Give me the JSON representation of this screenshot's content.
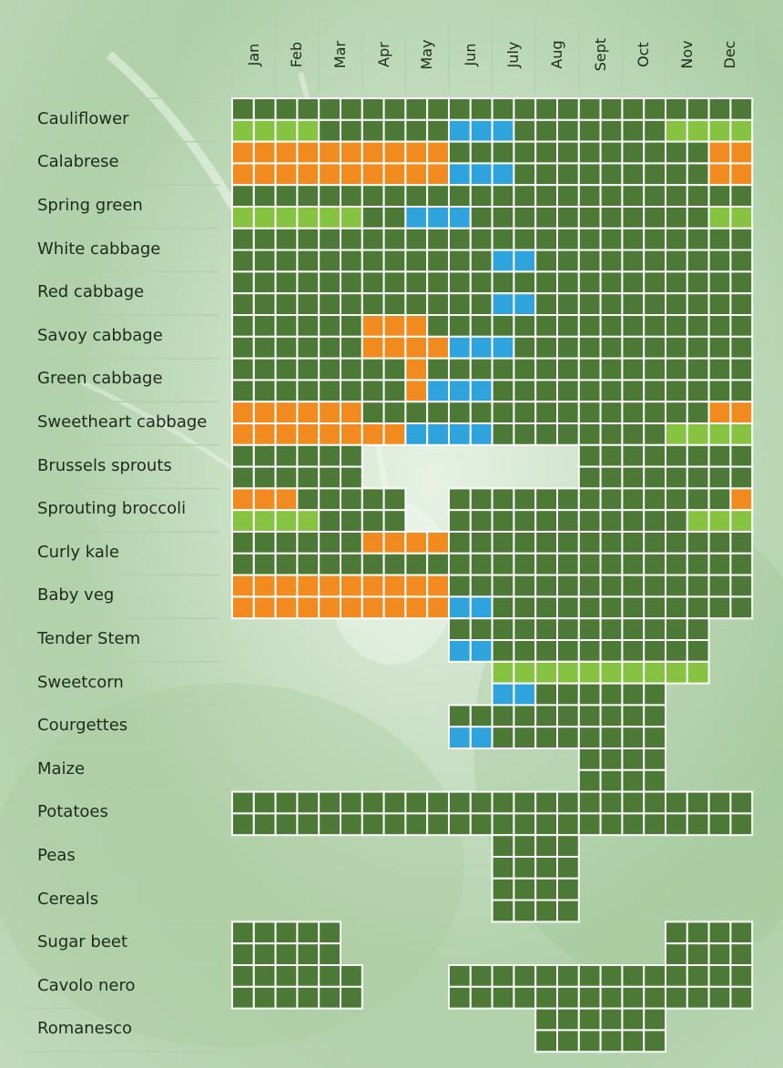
{
  "colors": {
    "dark": "#4c7a36",
    "light": "#86c340",
    "orange": "#f18a1f",
    "blue": "#2ea3dc",
    "grid_line": "#ffffff",
    "separator": "#b6cdb0"
  },
  "chart_data": {
    "type": "heatmap",
    "title": "",
    "months": [
      "Jan",
      "Feb",
      "Mar",
      "Apr",
      "May",
      "Jun",
      "July",
      "Aug",
      "Sept",
      "Oct",
      "Nov",
      "Dec"
    ],
    "cells_per_month": 2,
    "legend": {
      "D": "dark",
      "L": "light",
      "O": "orange",
      "B": "blue",
      ".": "empty"
    },
    "crops": [
      {
        "name": "Cauliflower",
        "sub_rows": [
          "DDDDDDDDDDDDDDDDDDDDDDDD",
          "LLLLDDDDDDBBBDDDDDDDLLLL"
        ]
      },
      {
        "name": "Calabrese",
        "sub_rows": [
          "OOOOOOOOOODDDDDDDDDDDDOO",
          "OOOOOOOOOOBBBDDDDDDDDDOO"
        ]
      },
      {
        "name": "Spring green",
        "sub_rows": [
          "DDDDDDDDDDDDDDDDDDDDDDDD",
          "LLLLLLDDBBBDDDDDDDDDDDLL"
        ]
      },
      {
        "name": "White cabbage",
        "sub_rows": [
          "DDDDDDDDDDDDDDDDDDDDDDDD",
          "DDDDDDDDDDDDBBDDDDDDDDDD"
        ]
      },
      {
        "name": "Red cabbage",
        "sub_rows": [
          "DDDDDDDDDDDDDDDDDDDDDDDD",
          "DDDDDDDDDDDDBBDDDDDDDDDD"
        ]
      },
      {
        "name": "Savoy cabbage",
        "sub_rows": [
          "DDDDDDOOODDDDDDDDDDDDDDD",
          "DDDDDDOOOOBBBDDDDDDDDDDD"
        ]
      },
      {
        "name": "Green cabbage",
        "sub_rows": [
          "DDDDDDDDODDDDDDDDDDDDDDD",
          "DDDDDDDDOBBBDDDDDDDDDDDD"
        ]
      },
      {
        "name": "Sweetheart cabbage",
        "sub_rows": [
          "OOOOOODDDDDDDDDDDDDDDDOO",
          "OOOOOOOOBBBBDDDDDDDDLLLL"
        ]
      },
      {
        "name": "Brussels sprouts",
        "sub_rows": [
          "DDDDDD..........DDDDDDDD",
          "DDDDDD..........DDDDDDDD"
        ]
      },
      {
        "name": "Sprouting broccoli",
        "sub_rows": [
          "OOODDDDD..DDDDDDDDDDDDDO",
          "LLLLDDDD..DDDDDDDDDDDLLL"
        ]
      },
      {
        "name": "Curly kale",
        "sub_rows": [
          "DDDDDDOOOODDDDDDDDDDDDDD",
          "DDDDDDDDDDDDDDDDDDDDDDDD"
        ]
      },
      {
        "name": "Baby veg",
        "sub_rows": [
          "OOOOOOOOOODDDDDDDDDDDDDD",
          "OOOOOOOOOOBBDDDDDDDDDDDD"
        ]
      },
      {
        "name": "Tender Stem",
        "sub_rows": [
          "..........DDDDDDDDDDDD..",
          "..........BBDDDDDDDDDD.."
        ]
      },
      {
        "name": "Sweetcorn",
        "sub_rows": [
          "............LLLLLLLLLL..",
          "............BBDDDDDD...."
        ]
      },
      {
        "name": "Courgettes",
        "sub_rows": [
          "..........DDDDDDDDDD....",
          "..........BBDDDDDDDD...."
        ]
      },
      {
        "name": "Maize",
        "sub_rows": [
          "................DDDD....",
          "................DDDD...."
        ]
      },
      {
        "name": "Potatoes",
        "sub_rows": [
          "DDDDDDDDDDDDDDDDDDDDDDDD",
          "DDDDDDDDDDDDDDDDDDDDDDDD"
        ]
      },
      {
        "name": "Peas",
        "sub_rows": [
          "............DDDD........",
          "............DDDD........"
        ]
      },
      {
        "name": "Cereals",
        "sub_rows": [
          "............DDDD........",
          "............DDDD........"
        ]
      },
      {
        "name": "Sugar beet",
        "sub_rows": [
          "DDDDD...............DDDD",
          "DDDDD...............DDDD"
        ]
      },
      {
        "name": "Cavolo nero",
        "sub_rows": [
          "DDDDDD....DDDDDDDDDDDDDD",
          "DDDDDD....DDDDDDDDDDDDDD"
        ]
      },
      {
        "name": "Romanesco",
        "sub_rows": [
          "..............DDDDDD....",
          "..............DDDDDD...."
        ]
      }
    ]
  }
}
